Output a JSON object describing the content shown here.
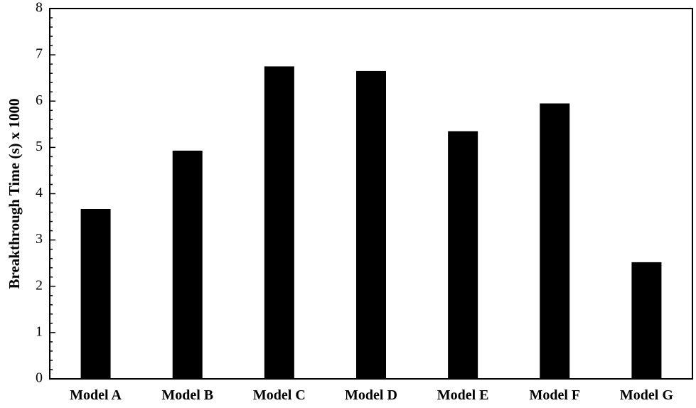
{
  "chart_data": {
    "type": "bar",
    "categories": [
      "Model A",
      "Model B",
      "Model C",
      "Model D",
      "Model E",
      "Model F",
      "Model G"
    ],
    "values": [
      3.67,
      4.93,
      6.75,
      6.65,
      5.35,
      5.95,
      2.52
    ],
    "xlabel": "",
    "ylabel": "Breakthrough Time (s) x 1000",
    "ylim": [
      0,
      8
    ],
    "yticks": [
      "0",
      "1",
      "2",
      "3",
      "4",
      "5",
      "6",
      "7",
      "8"
    ],
    "grid": false,
    "legend": "none",
    "bar_color": "#000000"
  }
}
